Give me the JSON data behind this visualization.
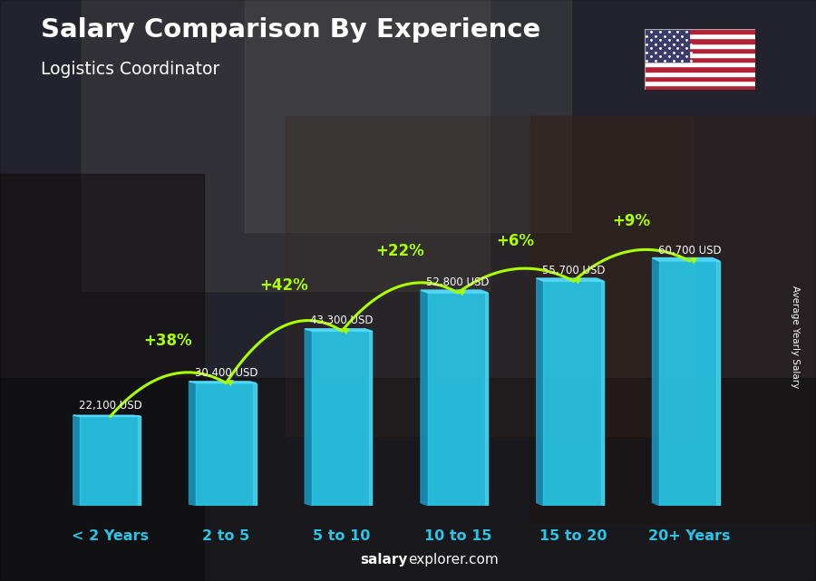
{
  "title": "Salary Comparison By Experience",
  "subtitle": "Logistics Coordinator",
  "categories": [
    "< 2 Years",
    "2 to 5",
    "5 to 10",
    "10 to 15",
    "15 to 20",
    "20+ Years"
  ],
  "values": [
    22100,
    30400,
    43300,
    52800,
    55700,
    60700
  ],
  "salary_labels": [
    "22,100 USD",
    "30,400 USD",
    "43,300 USD",
    "52,800 USD",
    "55,700 USD",
    "60,700 USD"
  ],
  "pct_labels": [
    "+38%",
    "+42%",
    "+22%",
    "+6%",
    "+9%"
  ],
  "pct_color": "#aaff00",
  "bar_front": "#29c5e6",
  "bar_left": "#1a90b8",
  "bar_top": "#55ddff",
  "bg_color": "#3a3a4a",
  "xlabel_color": "#29c5e6",
  "title_color": "#ffffff",
  "salary_label_color": "#ffffff",
  "footer_normal": "explorer.com",
  "footer_bold": "salary",
  "ylabel": "Average Yearly Salary",
  "ylim": [
    0,
    75000
  ],
  "bar_width": 0.52,
  "flag_stripes": [
    "#B22234",
    "#ffffff",
    "#B22234",
    "#ffffff",
    "#B22234",
    "#ffffff",
    "#B22234",
    "#ffffff",
    "#B22234",
    "#ffffff",
    "#B22234",
    "#ffffff",
    "#B22234"
  ],
  "flag_canton": "#3C3B6E"
}
